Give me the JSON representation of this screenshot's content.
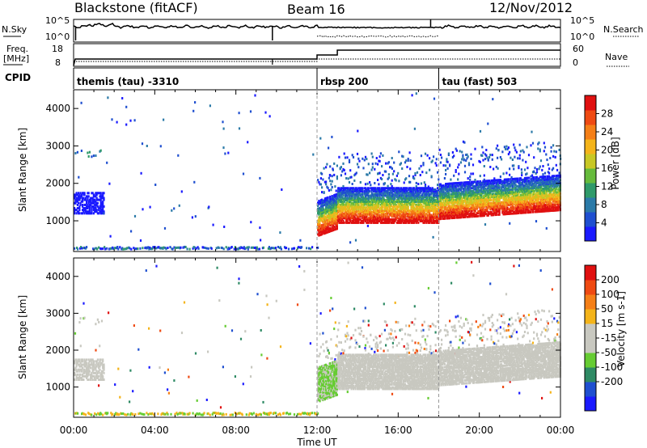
{
  "header": {
    "station": "Blackstone (fitACF)",
    "beam": "Beam 16",
    "date": "12/Nov/2012"
  },
  "labels": {
    "nsky": "N.Sky",
    "nsearch": "N.Search",
    "freq_line1": "Freq.",
    "freq_line2": "[MHz]",
    "cpid": "CPID",
    "nave": "Nave",
    "nsky_ticks": [
      "10^5",
      "10^0"
    ],
    "nsearch_ticks": [
      "10^5",
      "10^0"
    ],
    "freq_ticks": [
      "18",
      "8"
    ],
    "nave_ticks": [
      "60",
      "0"
    ],
    "xlabel": "Time UT"
  },
  "cpid_segments": [
    {
      "label": "themis (tau) -3310",
      "start_hour": 0,
      "end_hour": 12
    },
    {
      "label": "rbsp 200",
      "start_hour": 12,
      "end_hour": 18
    },
    {
      "label": "tau (fast) 503",
      "start_hour": 18,
      "end_hour": 24
    }
  ],
  "chart_data": [
    {
      "type": "heatmap",
      "name": "power",
      "ylabel": "Slant Range [km]",
      "colorbar_label": "Power [dB]",
      "x_range": [
        0,
        24
      ],
      "x_ticks": [
        "00:00",
        "04:00",
        "08:00",
        "12:00",
        "16:00",
        "20:00",
        "00:00"
      ],
      "ylim": [
        180,
        4500
      ],
      "y_ticks": [
        1000,
        2000,
        3000,
        4000
      ],
      "colorbar_ticks": [
        4,
        8,
        12,
        16,
        20,
        24,
        28
      ],
      "colorbar_range": [
        0,
        32
      ],
      "colorbar_colors": [
        "#1a1aff",
        "#1f4fd0",
        "#2b7aa8",
        "#2f9a6a",
        "#66bb3c",
        "#c8c825",
        "#f4b41a",
        "#f57f17",
        "#ef4a12",
        "#e01010"
      ]
    },
    {
      "type": "heatmap",
      "name": "velocity",
      "ylabel": "Slant Range [km]",
      "colorbar_label": "Velocity [m s-1]",
      "x_range": [
        0,
        24
      ],
      "x_ticks": [
        "00:00",
        "04:00",
        "08:00",
        "12:00",
        "16:00",
        "20:00",
        "00:00"
      ],
      "ylim": [
        180,
        4500
      ],
      "y_ticks": [
        1000,
        2000,
        3000,
        4000
      ],
      "colorbar_ticks": [
        "200",
        "100",
        "50",
        "15",
        "-15",
        "-50",
        "-100",
        "-200"
      ],
      "colorbar_colors": [
        "#1a1aff",
        "#1f4fd0",
        "#2e8a64",
        "#66cc33",
        "#c8c8c0",
        "#c8c8c0",
        "#f4b41a",
        "#f57f17",
        "#ef4a12",
        "#e01010"
      ]
    }
  ],
  "colors": {
    "ground_gray": "#c8c8c0",
    "dashed_marker": "#999999"
  }
}
